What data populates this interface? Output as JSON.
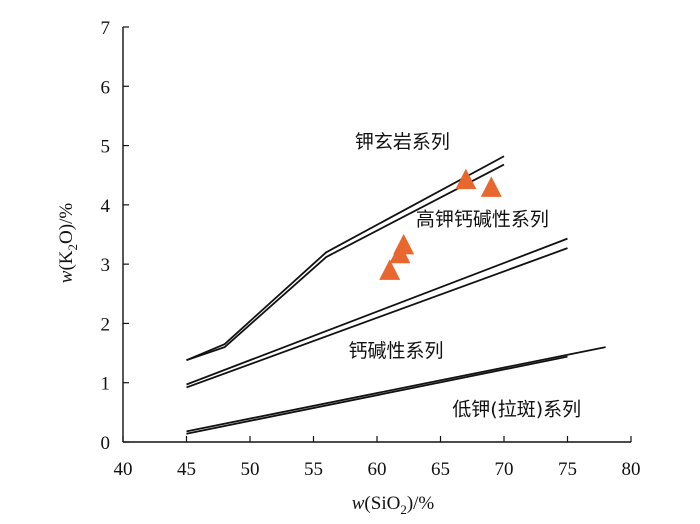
{
  "chart_data": {
    "type": "scatter",
    "xlabel": {
      "var": "w",
      "open": "(SiO",
      "sub": "2",
      "close": ")/%"
    },
    "ylabel": {
      "var": "w",
      "open": "(K",
      "sub": "2",
      "close": "O)/%"
    },
    "xlim": [
      40,
      80
    ],
    "ylim": [
      0,
      7
    ],
    "xticks": [
      "40",
      "45",
      "50",
      "55",
      "60",
      "65",
      "70",
      "75",
      "80"
    ],
    "yticks": [
      "0",
      "1",
      "2",
      "3",
      "4",
      "5",
      "6",
      "7"
    ],
    "grid": false,
    "boundaries": [
      {
        "points": [
          [
            45,
            1.38
          ],
          [
            48,
            1.65
          ],
          [
            56,
            3.2
          ],
          [
            70,
            4.82
          ]
        ]
      },
      {
        "points": [
          [
            45,
            1.38
          ],
          [
            48,
            1.6
          ],
          [
            56,
            3.12
          ],
          [
            70,
            4.68
          ]
        ]
      },
      {
        "points": [
          [
            45,
            0.97
          ],
          [
            75,
            3.43
          ]
        ]
      },
      {
        "points": [
          [
            45,
            0.92
          ],
          [
            75,
            3.27
          ]
        ]
      },
      {
        "points": [
          [
            45,
            0.18
          ],
          [
            78,
            1.6
          ]
        ]
      },
      {
        "points": [
          [
            45,
            0.14
          ],
          [
            75,
            1.44
          ]
        ]
      }
    ],
    "series": [
      {
        "marker": "triangle",
        "color": "#E8672E",
        "points": [
          [
            61,
            2.87
          ],
          [
            61.8,
            3.15
          ],
          [
            62.1,
            3.3
          ],
          [
            67,
            4.4
          ],
          [
            69,
            4.27
          ]
        ]
      }
    ],
    "annotations": [
      {
        "text": "钾玄岩系列",
        "x": 62,
        "y": 4.96
      },
      {
        "text": "高钾钙碱性系列",
        "x": 68.3,
        "y": 3.65
      },
      {
        "text": "钙碱性系列",
        "x": 61.5,
        "y": 1.43
      },
      {
        "text": "低钾(拉斑)系列",
        "x": 71,
        "y": 0.45
      }
    ]
  }
}
